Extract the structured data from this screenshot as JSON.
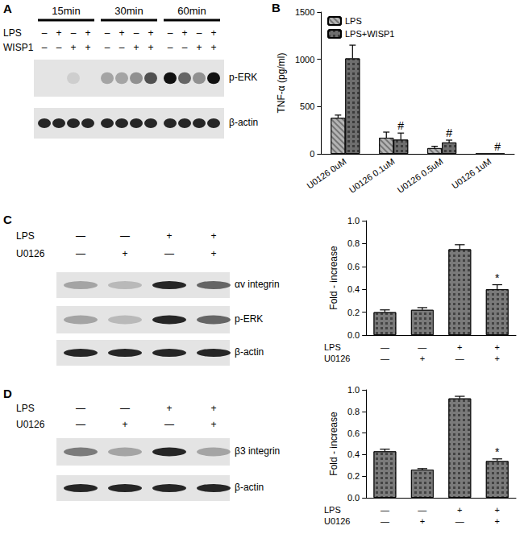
{
  "chart_data": [
    {
      "panel": "B",
      "type": "bar",
      "categories": [
        "U0126 0uM",
        "U0126 0.1uM",
        "U0126 0.5uM",
        "U0126 1uM"
      ],
      "ylabel": "TNF-α (pg/ml)",
      "series": [
        {
          "name": "LPS",
          "color": "#b4b4b4",
          "values": [
            380,
            170,
            60,
            0
          ],
          "errors": [
            30,
            60,
            20,
            0
          ],
          "annotations": [
            null,
            null,
            null,
            null
          ]
        },
        {
          "name": "LPS+WISP1",
          "color": "#6e6e6e",
          "values": [
            1010,
            150,
            120,
            0
          ],
          "errors": [
            140,
            70,
            25,
            0
          ],
          "annotations": [
            null,
            "#",
            "#",
            "#"
          ]
        }
      ],
      "ylim": [
        0,
        1500
      ],
      "yticks": [
        0,
        500,
        1000,
        1500
      ],
      "grid": false,
      "legend": "upper left"
    },
    {
      "panel": "C",
      "type": "bar",
      "categories": [
        "—\n—",
        "—\n+",
        "+\n—",
        "+\n+"
      ],
      "row_labels": [
        "LPS",
        "U0126"
      ],
      "ylabel": "Fold - increase",
      "values": [
        0.2,
        0.22,
        0.75,
        0.4
      ],
      "errors": [
        0.02,
        0.02,
        0.04,
        0.04
      ],
      "annotations": [
        null,
        null,
        null,
        "*"
      ],
      "color": "#7a7a7a",
      "ylim": [
        0,
        1
      ],
      "yticks": [
        {
          "value": 0,
          "label": "0.0"
        },
        0.2,
        0.4,
        0.6,
        0.8,
        {
          "value": 1,
          "label": "1.0"
        }
      ],
      "grid": false
    },
    {
      "panel": "D",
      "type": "bar",
      "categories": [
        "—\n—",
        "—\n+",
        "+\n—",
        "+\n+"
      ],
      "row_labels": [
        "LPS",
        "U0126"
      ],
      "ylabel": "Fold - increase",
      "values": [
        0.43,
        0.26,
        0.92,
        0.34
      ],
      "errors": [
        0.02,
        0.01,
        0.02,
        0.02
      ],
      "annotations": [
        null,
        null,
        null,
        "*"
      ],
      "color": "#7a7a7a",
      "ylim": [
        0,
        1
      ],
      "yticks": [
        {
          "value": 0,
          "label": "0.0"
        },
        0.2,
        0.4,
        0.6,
        0.8,
        {
          "value": 1,
          "label": "1.0"
        }
      ],
      "grid": false
    }
  ],
  "blots": [
    {
      "panel": "A",
      "time_groups": [
        "15min",
        "30min",
        "60min"
      ],
      "conditions": [
        {
          "label": "LPS",
          "marks": [
            "–",
            "+",
            "–",
            "+",
            "–",
            "+",
            "–",
            "+",
            "–",
            "+",
            "–",
            "+"
          ]
        },
        {
          "label": "WISP1",
          "marks": [
            "–",
            "–",
            "+",
            "+",
            "–",
            "–",
            "+",
            "+",
            "–",
            "–",
            "+",
            "+"
          ]
        }
      ],
      "bands": [
        {
          "label": "p-ERK",
          "intensity": [
            0,
            0,
            0.1,
            0,
            0.3,
            0.3,
            0.4,
            0.7,
            1,
            0.6,
            0.4,
            1
          ]
        },
        {
          "label": "β-actin",
          "intensity": [
            0.9,
            0.9,
            0.9,
            0.9,
            0.9,
            0.9,
            0.9,
            0.9,
            0.9,
            0.9,
            0.9,
            0.9
          ]
        }
      ]
    },
    {
      "panel": "C",
      "conditions": [
        {
          "label": "LPS",
          "marks": [
            "—",
            "—",
            "+",
            "+"
          ]
        },
        {
          "label": "U0126",
          "marks": [
            "—",
            "+",
            "—",
            "+"
          ]
        }
      ],
      "bands": [
        {
          "label": "αv integrin",
          "intensity": [
            0.3,
            0.2,
            0.9,
            0.6
          ]
        },
        {
          "label": "p-ERK",
          "intensity": [
            0.3,
            0.2,
            0.9,
            0.6
          ]
        },
        {
          "label": "β-actin",
          "intensity": [
            0.9,
            0.9,
            0.9,
            0.9
          ]
        }
      ]
    },
    {
      "panel": "D",
      "conditions": [
        {
          "label": "LPS",
          "marks": [
            "—",
            "—",
            "+",
            "+"
          ]
        },
        {
          "label": "U0126",
          "marks": [
            "—",
            "+",
            "—",
            "+"
          ]
        }
      ],
      "bands": [
        {
          "label": "β3 integrin",
          "intensity": [
            0.5,
            0.3,
            0.9,
            0.3
          ]
        },
        {
          "label": "β-actin",
          "intensity": [
            0.9,
            0.9,
            0.9,
            0.9
          ]
        }
      ]
    }
  ]
}
